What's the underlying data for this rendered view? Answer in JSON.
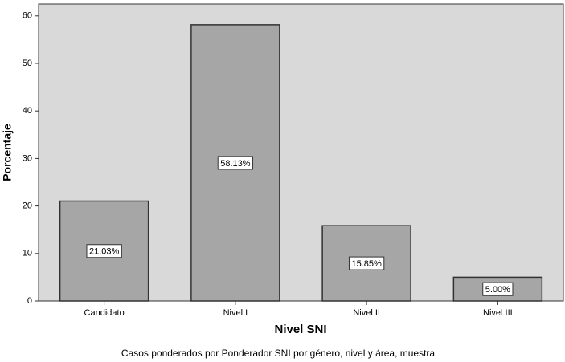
{
  "chart_data": {
    "type": "bar",
    "x_label": "Nivel SNI",
    "y_label": "Porcentaje",
    "footnote": "Casos ponderados por Ponderador SNI por género, nivel y área, muestra",
    "categories": [
      "Candidato",
      "Nivel I",
      "Nivel II",
      "Nivel III"
    ],
    "values": [
      21.03,
      58.13,
      15.85,
      5.0
    ],
    "value_labels": [
      "21.03%",
      "58.13%",
      "15.85%",
      "5.00%"
    ],
    "color": "#a6a6a6",
    "ylim": [
      0,
      62.5
    ],
    "yticks": [
      0,
      10,
      20,
      30,
      40,
      50,
      60
    ]
  }
}
